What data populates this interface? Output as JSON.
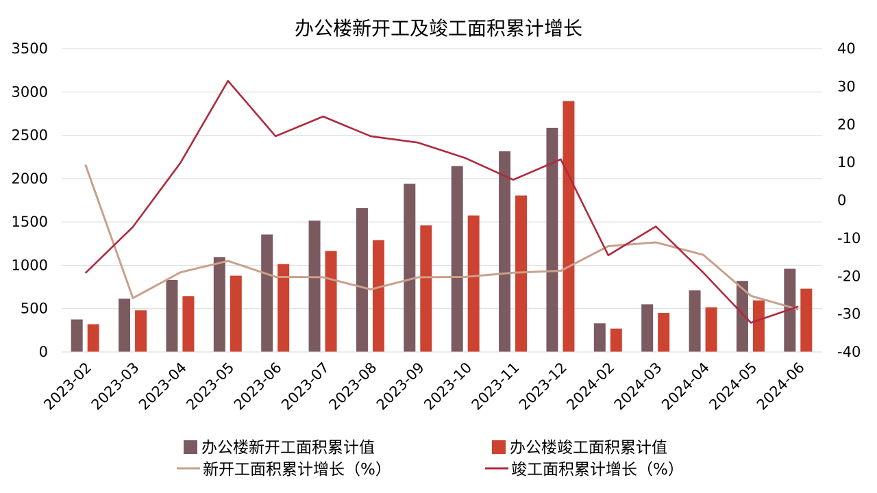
{
  "chart_data": {
    "type": "bar",
    "title": "办公楼新开工及竣工面积累计增长",
    "categories": [
      "2023-02",
      "2023-03",
      "2023-04",
      "2023-05",
      "2023-06",
      "2023-07",
      "2023-08",
      "2023-09",
      "2023-10",
      "2023-11",
      "2023-12",
      "2024-02",
      "2024-03",
      "2024-04",
      "2024-05",
      "2024-06"
    ],
    "left_axis": {
      "min": 0,
      "max": 3500,
      "step": 500,
      "ticks": [
        "0",
        "500",
        "1000",
        "1500",
        "2000",
        "2500",
        "3000",
        "3500"
      ]
    },
    "right_axis": {
      "min": -40,
      "max": 40,
      "step": 10,
      "ticks": [
        "-40",
        "-30",
        "-20",
        "-10",
        "0",
        "10",
        "20",
        "30",
        "40"
      ]
    },
    "grid": true,
    "legend_position": "bottom",
    "bar_series": [
      {
        "name": "办公楼新开工面积累计值",
        "color": "#7b5a60",
        "axis": "left",
        "values": [
          375,
          615,
          830,
          1095,
          1355,
          1515,
          1660,
          1940,
          2145,
          2315,
          2585,
          330,
          550,
          710,
          820,
          960
        ]
      },
      {
        "name": "办公楼竣工面积累计值",
        "color": "#cc4331",
        "axis": "left",
        "values": [
          320,
          480,
          645,
          880,
          1015,
          1165,
          1290,
          1460,
          1575,
          1805,
          2895,
          270,
          450,
          515,
          595,
          730
        ]
      }
    ],
    "line_series": [
      {
        "name": "新开工面积累计增长（%）",
        "color": "#c9a08c",
        "axis": "right",
        "values": [
          9.4,
          -25.8,
          -19.0,
          -16.0,
          -20.2,
          -20.3,
          -23.5,
          -20.3,
          -20.2,
          -19.1,
          -18.6,
          -12.1,
          -11.1,
          -14.4,
          -25.2,
          -28.8
        ]
      },
      {
        "name": "竣工面积累计增长（%）",
        "color": "#b0293d",
        "axis": "right",
        "values": [
          -19.2,
          -7.0,
          9.9,
          31.5,
          16.9,
          22.1,
          16.9,
          15.2,
          11.1,
          5.4,
          10.8,
          -14.5,
          -6.9,
          -19.1,
          -32.3,
          -28.0
        ]
      }
    ]
  }
}
